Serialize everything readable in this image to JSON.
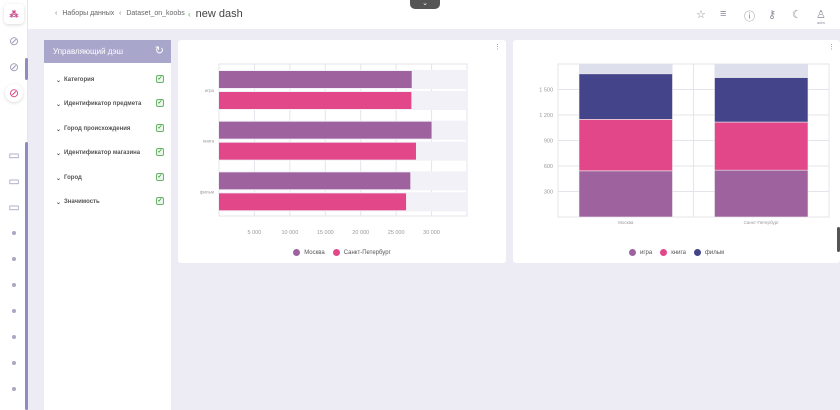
{
  "breadcrumbs": [
    {
      "label": "Наборы данных"
    },
    {
      "label": "Dataset_on_koobs"
    }
  ],
  "page_title": "new dash",
  "top_icons": [
    "star-icon",
    "list-icon",
    "help-icon",
    "wrench-icon",
    "moon-icon",
    "user-icon"
  ],
  "user_label": "adm",
  "filter_panel": {
    "title": "Управляющий дэш",
    "items": [
      "Категория",
      "Идентификатор предмета",
      "Город происхождения",
      "Идентификатор магазина",
      "Город",
      "Значимость"
    ]
  },
  "colors": {
    "purple": "#9e629e",
    "pink": "#e2478a",
    "navy": "#434489",
    "accent": "#a9a6cc"
  },
  "chart_data": [
    {
      "type": "bar",
      "orientation": "horizontal",
      "categories": [
        "игра",
        "книга",
        "фильм"
      ],
      "series": [
        {
          "name": "Москва",
          "values": [
            27200,
            30000,
            27000
          ]
        },
        {
          "name": "Санкт-Петербург",
          "values": [
            27150,
            27800,
            26400
          ]
        }
      ],
      "xlim": [
        0,
        35000
      ],
      "xticks": [
        "5 000",
        "10 000",
        "15 000",
        "20 000",
        "25 000",
        "30 000"
      ],
      "xtick_values": [
        5000,
        10000,
        15000,
        20000,
        25000,
        30000
      ],
      "grid": true,
      "legend": "bottom"
    },
    {
      "type": "bar",
      "stacked": true,
      "categories": [
        "Москва",
        "Санкт-Петербург"
      ],
      "series": [
        {
          "name": "игра",
          "values": [
            543,
            551
          ]
        },
        {
          "name": "книга",
          "values": [
            606,
            566
          ]
        },
        {
          "name": "фильм",
          "values": [
            535,
            523
          ]
        }
      ],
      "ylim": [
        0,
        1800
      ],
      "yticks": [
        "300",
        "600",
        "900",
        "1 200",
        "1 500"
      ],
      "ytick_values": [
        300,
        600,
        900,
        1200,
        1500
      ],
      "grid": true,
      "legend": "bottom"
    }
  ]
}
